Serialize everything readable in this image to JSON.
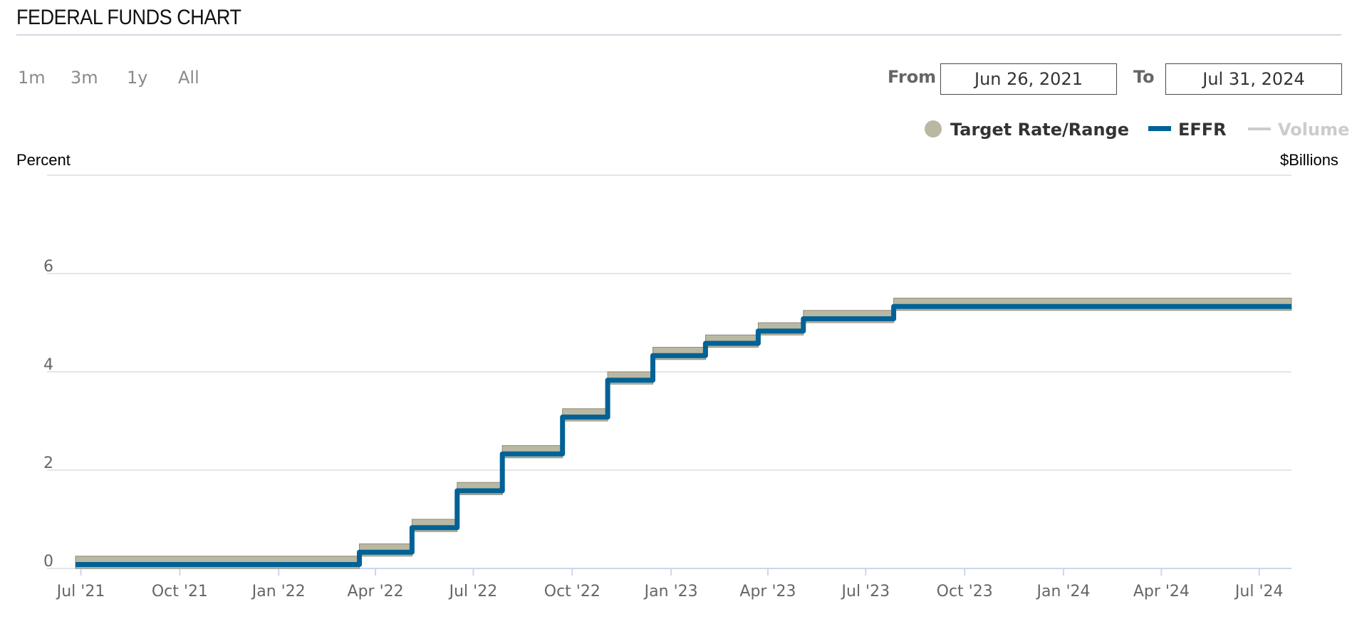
{
  "header": {
    "title": "FEDERAL FUNDS CHART"
  },
  "range_selector": {
    "buttons": [
      "1m",
      "3m",
      "1y",
      "All"
    ]
  },
  "date_range": {
    "from_label": "From",
    "from_value": "Jun 26, 2021",
    "to_label": "To",
    "to_value": "Jul 31, 2024"
  },
  "legend": {
    "target": "Target Rate/Range",
    "effr": "EFFR",
    "volume": "Volume"
  },
  "axes": {
    "left_title": "Percent",
    "right_title": "$Billions"
  },
  "colors": {
    "effr": "#006296",
    "target": "#bab8a2",
    "target_edge": "#8e8c7c",
    "volume_disabled": "#cccccc",
    "grid": "#d8dee6"
  },
  "chart_data": {
    "type": "line",
    "title": "FEDERAL FUNDS CHART",
    "ylabel": "Percent",
    "y2label": "$Billions",
    "ylim": [
      0,
      8
    ],
    "yticks": [
      0,
      2,
      4,
      6
    ],
    "xlim": [
      "2021-06-26",
      "2024-07-31"
    ],
    "xticks": [
      {
        "date": "2021-07-01",
        "label": "Jul '21"
      },
      {
        "date": "2021-10-01",
        "label": "Oct '21"
      },
      {
        "date": "2022-01-01",
        "label": "Jan '22"
      },
      {
        "date": "2022-04-01",
        "label": "Apr '22"
      },
      {
        "date": "2022-07-01",
        "label": "Jul '22"
      },
      {
        "date": "2022-10-01",
        "label": "Oct '22"
      },
      {
        "date": "2023-01-01",
        "label": "Jan '23"
      },
      {
        "date": "2023-04-01",
        "label": "Apr '23"
      },
      {
        "date": "2023-07-01",
        "label": "Jul '23"
      },
      {
        "date": "2023-10-01",
        "label": "Oct '23"
      },
      {
        "date": "2024-01-01",
        "label": "Jan '24"
      },
      {
        "date": "2024-04-01",
        "label": "Apr '24"
      },
      {
        "date": "2024-07-01",
        "label": "Jul '24"
      }
    ],
    "series": [
      {
        "name": "Target Rate/Range",
        "kind": "range",
        "steps": [
          {
            "from": "2021-06-26",
            "low": 0.0,
            "high": 0.25
          },
          {
            "from": "2022-03-17",
            "low": 0.25,
            "high": 0.5
          },
          {
            "from": "2022-05-05",
            "low": 0.75,
            "high": 1.0
          },
          {
            "from": "2022-06-16",
            "low": 1.5,
            "high": 1.75
          },
          {
            "from": "2022-07-28",
            "low": 2.25,
            "high": 2.5
          },
          {
            "from": "2022-09-22",
            "low": 3.0,
            "high": 3.25
          },
          {
            "from": "2022-11-03",
            "low": 3.75,
            "high": 4.0
          },
          {
            "from": "2022-12-15",
            "low": 4.25,
            "high": 4.5
          },
          {
            "from": "2023-02-02",
            "low": 4.5,
            "high": 4.75
          },
          {
            "from": "2023-03-23",
            "low": 4.75,
            "high": 5.0
          },
          {
            "from": "2023-05-04",
            "low": 5.0,
            "high": 5.25
          },
          {
            "from": "2023-07-27",
            "low": 5.25,
            "high": 5.5
          }
        ]
      },
      {
        "name": "EFFR",
        "kind": "step-line",
        "steps": [
          {
            "from": "2021-06-26",
            "value": 0.08
          },
          {
            "from": "2021-09-01",
            "value": 0.08
          },
          {
            "from": "2021-10-01",
            "value": 0.08
          },
          {
            "from": "2022-03-17",
            "value": 0.33
          },
          {
            "from": "2022-05-05",
            "value": 0.83
          },
          {
            "from": "2022-06-16",
            "value": 1.58
          },
          {
            "from": "2022-07-28",
            "value": 2.33
          },
          {
            "from": "2022-09-22",
            "value": 3.08
          },
          {
            "from": "2022-11-03",
            "value": 3.83
          },
          {
            "from": "2022-12-15",
            "value": 4.33
          },
          {
            "from": "2023-02-02",
            "value": 4.58
          },
          {
            "from": "2023-03-23",
            "value": 4.83
          },
          {
            "from": "2023-05-04",
            "value": 5.08
          },
          {
            "from": "2023-07-27",
            "value": 5.33
          }
        ],
        "end": "2024-07-31"
      },
      {
        "name": "Volume",
        "kind": "hidden"
      }
    ],
    "grid": true,
    "legend_position": "top-right"
  }
}
